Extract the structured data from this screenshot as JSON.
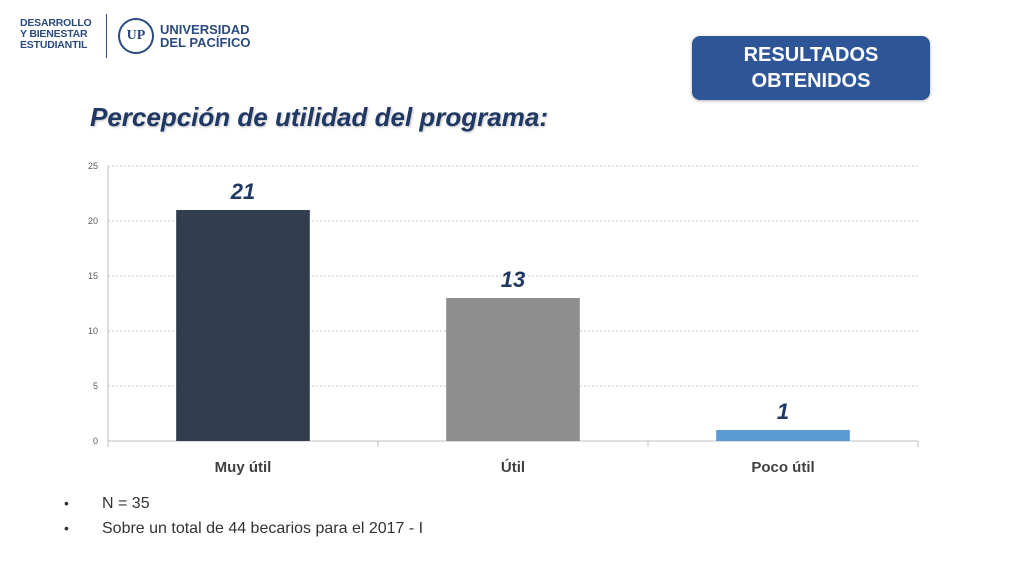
{
  "header": {
    "left_logo_lines": [
      "DESARROLLO",
      "Y BIENESTAR",
      "ESTUDIANTIL"
    ],
    "right_logo_lines": [
      "UNIVERSIDAD",
      "DEL PACÍFICO"
    ],
    "right_logo_icon": "university-seal-icon",
    "badge_lines": [
      "RESULTADOS",
      "OBTENIDOS"
    ]
  },
  "colors": {
    "brand_blue": "#2e5597",
    "title_blue": "#1f3864",
    "bar_1": "#323d4f",
    "bar_2": "#8e8e8e",
    "bar_3": "#5b9bd5"
  },
  "chart_data": {
    "type": "bar",
    "title": "Percepción de utilidad del programa:",
    "categories": [
      "Muy útil",
      "Útil",
      "Poco útil"
    ],
    "values": [
      21,
      13,
      1
    ],
    "value_labels": [
      "21",
      "13",
      "1"
    ],
    "yticks": [
      "0",
      "5",
      "10",
      "15",
      "20",
      "25"
    ],
    "ylim": [
      0,
      25
    ],
    "grid": true,
    "legend": "none"
  },
  "notes": [
    "N = 35",
    "Sobre un total de 44 becarios para el 2017 - I"
  ],
  "bullet_symbol": "•"
}
